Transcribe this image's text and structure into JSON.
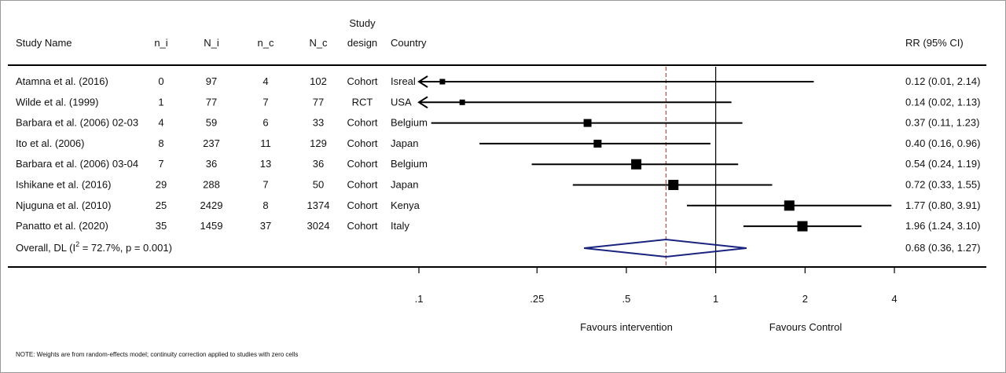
{
  "chart_data": {
    "type": "forest",
    "x_axis": {
      "scale": "log",
      "ticks": [
        ".1",
        ".25",
        ".5",
        "1",
        "2",
        "4"
      ],
      "tick_values": [
        0.1,
        0.25,
        0.5,
        1,
        2,
        4
      ],
      "xlim": [
        0.1,
        4
      ],
      "reference_line": 1,
      "overall_line": 0.68
    },
    "columns": {
      "study": "Study Name",
      "n_i": "n_i",
      "N_i": "N_i",
      "n_c": "n_c",
      "N_c": "N_c",
      "design_line1": "Study",
      "design_line2": "design",
      "country": "Country",
      "rr": "RR (95% CI)"
    },
    "studies": [
      {
        "name": "Atamna  et al. (2016)",
        "n_i": "0",
        "N_i": "97",
        "n_c": "4",
        "N_c": "102",
        "design": "Cohort",
        "country": "Isreal",
        "rr": 0.12,
        "lo": 0.01,
        "hi": 2.14,
        "ci_text": "0.12 (0.01, 2.14)",
        "arrow_left": true,
        "weight": 1
      },
      {
        "name": "Wilde et al. (1999)",
        "n_i": "1",
        "N_i": "77",
        "n_c": "7",
        "N_c": "77",
        "design": "RCT",
        "country": "USA",
        "rr": 0.14,
        "lo": 0.02,
        "hi": 1.13,
        "ci_text": "0.14 (0.02, 1.13)",
        "arrow_left": true,
        "weight": 1
      },
      {
        "name": "Barbara et al. (2006) 02-03",
        "n_i": "4",
        "N_i": "59",
        "n_c": "6",
        "N_c": "33",
        "design": "Cohort",
        "country": "Belgium",
        "rr": 0.37,
        "lo": 0.11,
        "hi": 1.23,
        "ci_text": "0.37 (0.11, 1.23)",
        "arrow_left": false,
        "weight": 2
      },
      {
        "name": "Ito et al. (2006)",
        "n_i": "8",
        "N_i": "237",
        "n_c": "11",
        "N_c": "129",
        "design": "Cohort",
        "country": "Japan",
        "rr": 0.4,
        "lo": 0.16,
        "hi": 0.96,
        "ci_text": "0.40 (0.16, 0.96)",
        "arrow_left": false,
        "weight": 2
      },
      {
        "name": "Barbara et al. (2006) 03-04",
        "n_i": "7",
        "N_i": "36",
        "n_c": "13",
        "N_c": "36",
        "design": "Cohort",
        "country": "Belgium",
        "rr": 0.54,
        "lo": 0.24,
        "hi": 1.19,
        "ci_text": "0.54 (0.24, 1.19)",
        "arrow_left": false,
        "weight": 3
      },
      {
        "name": "Ishikane et al. (2016)",
        "n_i": "29",
        "N_i": "288",
        "n_c": "7",
        "N_c": "50",
        "design": "Cohort",
        "country": "Japan",
        "rr": 0.72,
        "lo": 0.33,
        "hi": 1.55,
        "ci_text": "0.72 (0.33, 1.55)",
        "arrow_left": false,
        "weight": 3
      },
      {
        "name": "Njuguna et al. (2010)",
        "n_i": "25",
        "N_i": "2429",
        "n_c": "8",
        "N_c": "1374",
        "design": "Cohort",
        "country": "Kenya",
        "rr": 1.77,
        "lo": 0.8,
        "hi": 3.91,
        "ci_text": "1.77 (0.80, 3.91)",
        "arrow_left": false,
        "weight": 3
      },
      {
        "name": "Panatto et al. (2020)",
        "n_i": "35",
        "N_i": "1459",
        "n_c": "37",
        "N_c": "3024",
        "design": "Cohort",
        "country": "Italy",
        "rr": 1.96,
        "lo": 1.24,
        "hi": 3.1,
        "ci_text": "1.96 (1.24, 3.10)",
        "arrow_left": false,
        "weight": 3
      }
    ],
    "overall": {
      "label_prefix": "Overall, DL (I",
      "label_sup": "2",
      "label_suffix": " = 72.7%, p = 0.001)",
      "rr": 0.68,
      "lo": 0.36,
      "hi": 1.27,
      "ci_text": "0.68 (0.36, 1.27)"
    },
    "favours_left": "Favours intervention",
    "favours_right": "Favours Control",
    "note": "NOTE: Weights are from random-effects model; continuity correction applied to studies with zero cells",
    "colors": {
      "diamond": "#1a237e",
      "overall_line": "#a0302a",
      "ink": "#000000"
    }
  }
}
